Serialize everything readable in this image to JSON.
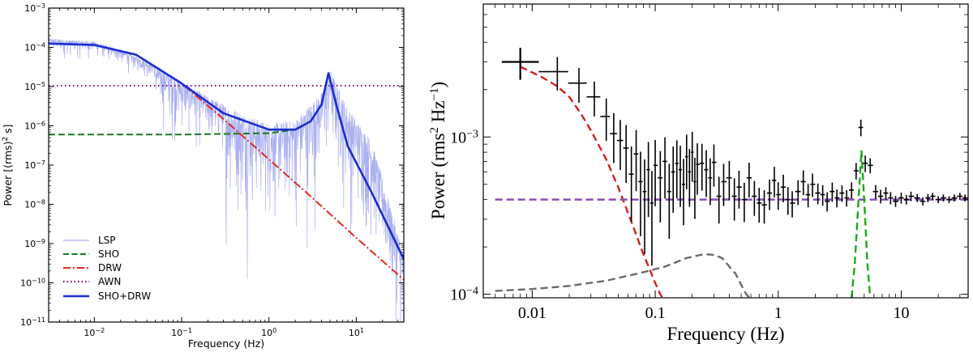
{
  "chart_data": [
    {
      "type": "line",
      "title": "",
      "xlabel": "Frequency (Hz)",
      "ylabel_prefix": "Power [(rms)",
      "ylabel_sup": "2",
      "ylabel_suffix": " s]",
      "xscale": "log",
      "yscale": "log",
      "xlim": [
        0.003,
        35
      ],
      "ylim": [
        1e-11,
        0.001
      ],
      "x_ticks": [
        {
          "value": 0.01,
          "base": "10",
          "exp": "−2"
        },
        {
          "value": 0.1,
          "base": "10",
          "exp": "−1"
        },
        {
          "value": 1,
          "base": "10",
          "exp": "0"
        },
        {
          "value": 10,
          "base": "10",
          "exp": "1"
        }
      ],
      "y_ticks": [
        {
          "value": 1e-11,
          "base": "10",
          "exp": "−11"
        },
        {
          "value": 1e-10,
          "base": "10",
          "exp": "−10"
        },
        {
          "value": 1e-09,
          "base": "10",
          "exp": "−9"
        },
        {
          "value": 1e-08,
          "base": "10",
          "exp": "−8"
        },
        {
          "value": 1e-07,
          "base": "10",
          "exp": "−7"
        },
        {
          "value": 1e-06,
          "base": "10",
          "exp": "−6"
        },
        {
          "value": 1e-05,
          "base": "10",
          "exp": "−5"
        },
        {
          "value": 0.0001,
          "base": "10",
          "exp": "−4"
        },
        {
          "value": 0.001,
          "base": "10",
          "exp": "−3"
        }
      ],
      "legend_position": "lower-left",
      "series": [
        {
          "name": "LSP",
          "style": "noisy-periodogram",
          "color": "#aab0f0",
          "x": [
            0.003,
            0.005,
            0.01,
            0.02,
            0.05,
            0.1,
            0.2,
            0.5,
            1,
            2,
            4,
            5,
            8,
            15,
            35
          ],
          "y": [
            0.00012,
            0.00011,
            0.0001,
            6e-05,
            2.5e-05,
            1e-05,
            4e-06,
            1.5e-06,
            8e-07,
            1e-06,
            5e-06,
            2e-05,
            2e-06,
            3e-07,
            4e-10
          ]
        },
        {
          "name": "SHO",
          "style": "dashed",
          "color": "#1a7a1a",
          "x": [
            0.003,
            0.1,
            1,
            2,
            3,
            4,
            4.8,
            6,
            8,
            15,
            35
          ],
          "y": [
            6e-07,
            6e-07,
            6.5e-07,
            8e-07,
            1.3e-06,
            3.5e-06,
            2.2e-05,
            3e-06,
            3e-07,
            2e-08,
            4e-10
          ]
        },
        {
          "name": "DRW",
          "style": "dashdot",
          "color": "#e8281e",
          "x": [
            0.003,
            0.01,
            0.03,
            0.1,
            0.3,
            1,
            3,
            10,
            35
          ],
          "y": [
            0.000125,
            0.000115,
            6.5e-05,
            1.2e-05,
            1.5e-06,
            1.4e-07,
            1.6e-08,
            1.4e-09,
            1.2e-10
          ]
        },
        {
          "name": "AWN",
          "style": "dotted",
          "color": "#7a0f6e",
          "x": [
            0.003,
            35
          ],
          "y": [
            1.05e-05,
            1.05e-05
          ]
        },
        {
          "name": "SHO+DRW",
          "style": "solid",
          "color": "#1a2ed0",
          "x": [
            0.003,
            0.01,
            0.03,
            0.1,
            0.3,
            1,
            2,
            3,
            4,
            4.8,
            6,
            8,
            15,
            35
          ],
          "y": [
            0.000125,
            0.000115,
            6.5e-05,
            1.2e-05,
            2.1e-06,
            8e-07,
            8e-07,
            1.3e-06,
            3.5e-06,
            2.2e-05,
            3e-06,
            3e-07,
            2e-08,
            4e-10
          ]
        }
      ]
    },
    {
      "type": "scatter",
      "title": "",
      "xlabel": "Frequency (Hz)",
      "ylabel_prefix": "Power (rms",
      "ylabel_sup1": "2",
      "ylabel_mid": " Hz",
      "ylabel_sup2": "−1",
      "ylabel_suffix": ")",
      "xscale": "log",
      "yscale": "log",
      "xlim": [
        0.004,
        35
      ],
      "ylim": [
        9.5e-05,
        0.007
      ],
      "x_ticks": [
        {
          "value": 0.01,
          "label": "0.01"
        },
        {
          "value": 0.1,
          "label": "0.1"
        },
        {
          "value": 1,
          "label": "1"
        },
        {
          "value": 10,
          "label": "10"
        }
      ],
      "y_ticks": [
        {
          "value": 0.0001,
          "base": "10",
          "exp": "−4"
        },
        {
          "value": 0.001,
          "base": "10",
          "exp": "−3"
        }
      ],
      "points": {
        "name": "data",
        "color": "#000000",
        "x": [
          0.008,
          0.016,
          0.024,
          0.032,
          0.04,
          0.046,
          0.052,
          0.058,
          0.064,
          0.07,
          0.076,
          0.082,
          0.088,
          0.094,
          0.1,
          0.11,
          0.12,
          0.13,
          0.14,
          0.15,
          0.16,
          0.17,
          0.18,
          0.19,
          0.2,
          0.21,
          0.22,
          0.24,
          0.26,
          0.28,
          0.3,
          0.33,
          0.36,
          0.4,
          0.44,
          0.48,
          0.53,
          0.58,
          0.64,
          0.7,
          0.77,
          0.85,
          0.93,
          1.0,
          1.1,
          1.2,
          1.3,
          1.45,
          1.6,
          1.75,
          1.9,
          2.1,
          2.3,
          2.5,
          2.75,
          3.0,
          3.3,
          3.6,
          3.95,
          4.3,
          4.7,
          5.1,
          5.6,
          6.2,
          6.8,
          7.5,
          8.2,
          9.0,
          10,
          11,
          12,
          13.5,
          15,
          16.5,
          18,
          20,
          22,
          24.5,
          27,
          30,
          33
        ],
        "y": [
          0.003,
          0.0026,
          0.0022,
          0.0018,
          0.00135,
          0.00105,
          0.00095,
          0.00085,
          0.00058,
          0.00078,
          0.00052,
          0.00045,
          0.00062,
          0.00038,
          0.00066,
          0.00055,
          0.0007,
          0.00045,
          0.0006,
          0.00068,
          0.00062,
          0.0005,
          0.00075,
          0.0006,
          0.0008,
          0.00052,
          0.00067,
          0.00068,
          0.00062,
          0.00055,
          0.00069,
          0.00042,
          0.00052,
          0.00055,
          0.00042,
          0.00048,
          0.0004,
          0.00055,
          0.00042,
          0.00038,
          0.00037,
          0.00044,
          0.00053,
          0.00043,
          0.00048,
          0.0004,
          0.00038,
          0.00045,
          0.00052,
          0.00043,
          0.0005,
          0.00044,
          0.00043,
          0.00039,
          0.00045,
          0.00041,
          0.00044,
          0.00041,
          0.00046,
          0.00061,
          0.00115,
          0.00068,
          0.00066,
          0.00045,
          0.00042,
          0.00044,
          0.00041,
          0.00039,
          0.00041,
          0.0004,
          0.00042,
          0.00041,
          0.00039,
          0.00041,
          0.00042,
          0.0004,
          0.00041,
          0.0004,
          0.00041,
          0.00042,
          0.00041
        ],
        "yerr_frac": [
          0.23,
          0.24,
          0.25,
          0.25,
          0.3,
          0.35,
          0.35,
          0.4,
          0.5,
          0.42,
          0.55,
          0.6,
          0.5,
          0.6,
          0.45,
          0.48,
          0.42,
          0.5,
          0.45,
          0.4,
          0.42,
          0.45,
          0.38,
          0.4,
          0.35,
          0.42,
          0.36,
          0.33,
          0.33,
          0.33,
          0.3,
          0.33,
          0.3,
          0.28,
          0.3,
          0.27,
          0.28,
          0.25,
          0.25,
          0.25,
          0.24,
          0.22,
          0.22,
          0.2,
          0.2,
          0.2,
          0.19,
          0.18,
          0.18,
          0.17,
          0.17,
          0.15,
          0.15,
          0.14,
          0.14,
          0.13,
          0.12,
          0.12,
          0.12,
          0.12,
          0.12,
          0.12,
          0.11,
          0.1,
          0.1,
          0.09,
          0.09,
          0.08,
          0.08,
          0.07,
          0.07,
          0.06,
          0.06,
          0.06,
          0.05,
          0.05,
          0.05,
          0.05,
          0.05,
          0.05,
          0.05
        ]
      },
      "series": [
        {
          "name": "red component",
          "style": "dashed",
          "color": "#d42020",
          "x": [
            0.008,
            0.012,
            0.016,
            0.02,
            0.025,
            0.03,
            0.04,
            0.05,
            0.06,
            0.07,
            0.08,
            0.09,
            0.1,
            0.11,
            0.115
          ],
          "y": [
            0.0028,
            0.0024,
            0.0021,
            0.0018,
            0.0014,
            0.0011,
            0.00072,
            0.00048,
            0.00033,
            0.00024,
            0.00018,
            0.000145,
            0.000118,
            0.0001,
            9.5e-05
          ]
        },
        {
          "name": "purple constant",
          "style": "dashed",
          "color": "#8a4db5",
          "x": [
            0.005,
            35
          ],
          "y": [
            0.0004,
            0.0004
          ]
        },
        {
          "name": "gray component",
          "style": "dashed",
          "color": "#6a6a6a",
          "x": [
            0.005,
            0.01,
            0.02,
            0.04,
            0.08,
            0.12,
            0.18,
            0.25,
            0.3,
            0.35,
            0.45,
            0.5,
            0.55,
            0.6
          ],
          "y": [
            0.000105,
            0.000108,
            0.000113,
            0.000122,
            0.000138,
            0.00015,
            0.00017,
            0.00018,
            0.000178,
            0.00017,
            0.000135,
            0.000115,
            0.0001,
            9.3e-05
          ]
        },
        {
          "name": "green QPO",
          "style": "dashed",
          "color": "#1aaa1a",
          "x": [
            3.95,
            4.2,
            4.5,
            4.75,
            5.0,
            5.3,
            5.6
          ],
          "y": [
            9.5e-05,
            0.00016,
            0.0004,
            0.00082,
            0.0004,
            0.00016,
            9.5e-05
          ]
        }
      ]
    }
  ],
  "legend": {
    "items": [
      {
        "label": "LSP"
      },
      {
        "label": "SHO"
      },
      {
        "label": "DRW"
      },
      {
        "label": "AWN"
      },
      {
        "label": "SHO+DRW"
      }
    ]
  }
}
